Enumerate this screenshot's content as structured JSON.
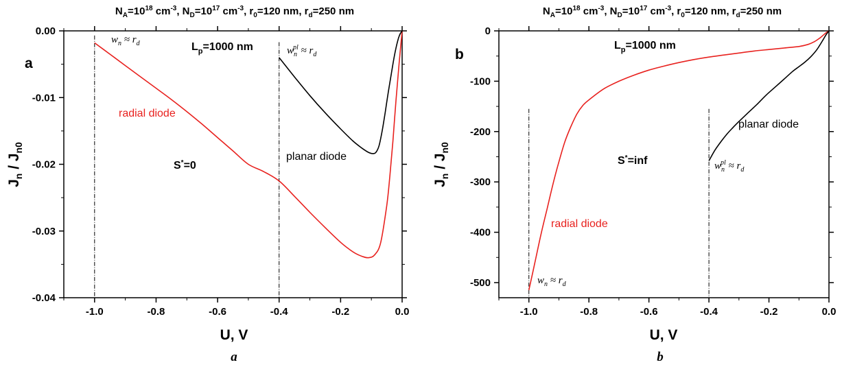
{
  "chart_data": [
    {
      "type": "line",
      "panel_label": "a",
      "caption": "a",
      "title_parts": {
        "na": "N",
        "na_sub": "A",
        "na_val": "=10",
        "na_exp": "18",
        "na_unit": " cm",
        "na_unit_exp": "-3",
        "nd": ", N",
        "nd_sub": "D",
        "nd_val": "=10",
        "nd_exp": "17",
        "nd_unit": " cm",
        "nd_unit_exp": "-3",
        "r0": ", r",
        "r0_sub": "0",
        "r0_val": "=120 nm",
        "rd": ", r",
        "rd_sub": "d",
        "rd_val": "=250 nm"
      },
      "xlabel": "U, V",
      "ylabel_parts": {
        "j": "J",
        "j_sub": "n",
        "slash": " / J",
        "j0_sub": "n0"
      },
      "xlim": [
        -1.1,
        0.0
      ],
      "ylim": [
        -0.04,
        0.0
      ],
      "xticks": [
        "-1.0",
        "-0.8",
        "-0.6",
        "-0.4",
        "-0.2",
        "0.0"
      ],
      "xtick_values": [
        -1.0,
        -0.8,
        -0.6,
        -0.4,
        -0.2,
        0.0
      ],
      "yticks": [
        "0.00",
        "-0.01",
        "-0.02",
        "-0.03",
        "-0.04"
      ],
      "ytick_values": [
        0.0,
        -0.01,
        -0.02,
        -0.03,
        -0.04
      ],
      "vlines": [
        {
          "x": -1.0,
          "y_top": -0.0007
        },
        {
          "x": -0.4,
          "y_top": -0.0017
        }
      ],
      "series": [
        {
          "name": "radial diode",
          "color": "#e8211e",
          "x": [
            -1.0,
            -0.95,
            -0.9,
            -0.85,
            -0.8,
            -0.75,
            -0.7,
            -0.65,
            -0.6,
            -0.55,
            -0.5,
            -0.45,
            -0.4,
            -0.35,
            -0.3,
            -0.25,
            -0.2,
            -0.17,
            -0.15,
            -0.13,
            -0.11,
            -0.09,
            -0.07,
            -0.05,
            -0.04,
            -0.03,
            -0.02,
            -0.01,
            0.0
          ],
          "y": [
            -0.0018,
            -0.0035,
            -0.0052,
            -0.0069,
            -0.0086,
            -0.0103,
            -0.0121,
            -0.014,
            -0.016,
            -0.018,
            -0.02,
            -0.0211,
            -0.0225,
            -0.0248,
            -0.0272,
            -0.0295,
            -0.0317,
            -0.0328,
            -0.0334,
            -0.0338,
            -0.034,
            -0.0336,
            -0.0318,
            -0.0262,
            -0.0218,
            -0.0165,
            -0.0105,
            -0.005,
            0.0
          ]
        },
        {
          "name": "planar diode",
          "color": "#000000",
          "x": [
            -0.4,
            -0.35,
            -0.3,
            -0.25,
            -0.2,
            -0.16,
            -0.13,
            -0.11,
            -0.095,
            -0.085,
            -0.075,
            -0.065,
            -0.055,
            -0.045,
            -0.035,
            -0.025,
            -0.015,
            -0.008,
            0.0
          ],
          "y": [
            -0.004,
            -0.0069,
            -0.0097,
            -0.0123,
            -0.0147,
            -0.0165,
            -0.0176,
            -0.0182,
            -0.0184,
            -0.0182,
            -0.0172,
            -0.015,
            -0.0122,
            -0.0092,
            -0.0064,
            -0.0037,
            -0.0016,
            -0.0006,
            0.0
          ]
        }
      ],
      "annotations": {
        "lp_main": "L",
        "lp_sub": "p",
        "lp_val": "=1000 nm",
        "s_main": "S",
        "s_sup": "*",
        "s_val": "=0",
        "radial_label": "radial diode",
        "planar_label": "planar diode",
        "wn_a": "w",
        "wn_a_sub": "n",
        "wn_a_rest": " ≈ r",
        "wn_a_rsub": "d",
        "wnpl_a": "w",
        "wnpl_a_sub": "n",
        "wnpl_a_sup": "pl",
        "wnpl_a_rest": " ≈ r",
        "wnpl_a_rsub": "d"
      }
    },
    {
      "type": "line",
      "panel_label": "b",
      "caption": "b",
      "title_parts": {
        "na": "N",
        "na_sub": "A",
        "na_val": "=10",
        "na_exp": "18",
        "na_unit": " cm",
        "na_unit_exp": "-3",
        "nd": ", N",
        "nd_sub": "D",
        "nd_val": "=10",
        "nd_exp": "17",
        "nd_unit": " cm",
        "nd_unit_exp": "-3",
        "r0": ", r",
        "r0_sub": "0",
        "r0_val": "=120 nm",
        "rd": ", r",
        "rd_sub": "d",
        "rd_val": "=250 nm"
      },
      "xlabel": "U, V",
      "ylabel_parts": {
        "j": "J",
        "j_sub": "n",
        "slash": " / J",
        "j0_sub": "n0"
      },
      "xlim": [
        -1.1,
        0.0
      ],
      "ylim": [
        -530,
        0
      ],
      "xticks": [
        "-1.0",
        "-0.8",
        "-0.6",
        "-0.4",
        "-0.2",
        "0.0"
      ],
      "xtick_values": [
        -1.0,
        -0.8,
        -0.6,
        -0.4,
        -0.2,
        0.0
      ],
      "yticks": [
        "0",
        "-100",
        "-200",
        "-300",
        "-400",
        "-500"
      ],
      "ytick_values": [
        0,
        -100,
        -200,
        -300,
        -400,
        -500
      ],
      "vlines": [
        {
          "x": -1.0,
          "y_top": -155
        },
        {
          "x": -0.4,
          "y_top": -155
        }
      ],
      "series": [
        {
          "name": "radial diode",
          "color": "#e8211e",
          "x": [
            -1.0,
            -0.98,
            -0.96,
            -0.94,
            -0.92,
            -0.9,
            -0.88,
            -0.86,
            -0.84,
            -0.82,
            -0.8,
            -0.75,
            -0.7,
            -0.65,
            -0.6,
            -0.55,
            -0.5,
            -0.45,
            -0.4,
            -0.35,
            -0.3,
            -0.25,
            -0.2,
            -0.15,
            -0.1,
            -0.07,
            -0.05,
            -0.03,
            -0.02,
            -0.01,
            0.0
          ],
          "y": [
            -515,
            -460,
            -405,
            -355,
            -305,
            -260,
            -220,
            -190,
            -165,
            -148,
            -137,
            -115,
            -100,
            -88,
            -78,
            -70,
            -63,
            -57,
            -52,
            -48,
            -44,
            -40,
            -37,
            -34,
            -31,
            -27,
            -22,
            -14,
            -9,
            -4,
            0
          ]
        },
        {
          "name": "planar diode",
          "color": "#000000",
          "x": [
            -0.4,
            -0.38,
            -0.36,
            -0.34,
            -0.32,
            -0.3,
            -0.27,
            -0.24,
            -0.21,
            -0.18,
            -0.15,
            -0.12,
            -0.1,
            -0.08,
            -0.06,
            -0.04,
            -0.02,
            -0.01,
            0.0
          ],
          "y": [
            -258,
            -237,
            -220,
            -205,
            -192,
            -180,
            -163,
            -146,
            -128,
            -112,
            -96,
            -80,
            -71,
            -62,
            -51,
            -37,
            -18,
            -8,
            0
          ]
        }
      ],
      "annotations": {
        "lp_main": "L",
        "lp_sub": "p",
        "lp_val": "=1000 nm",
        "s_main": "S",
        "s_sup": "*",
        "s_val": "=inf",
        "radial_label": "radial diode",
        "planar_label": "planar diode",
        "wn_b": "w",
        "wn_b_sub": "n",
        "wn_b_rest": " ≈ r",
        "wn_b_rsub": "d",
        "wnpl_b": "w",
        "wnpl_b_sub": "n",
        "wnpl_b_sup": "pl",
        "wnpl_b_rest": " ≈ r",
        "wnpl_b_rsub": "d"
      }
    }
  ]
}
